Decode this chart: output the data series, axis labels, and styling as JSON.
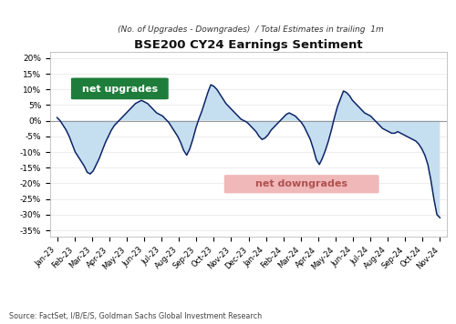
{
  "title": "BSE200 CY24 Earnings Sentiment",
  "subtitle": "(No. of Upgrades - Downgrades)  / Total Estimates in trailing  1m",
  "source": "Source: FactSet, I/B/E/S, Goldman Sachs Global Investment Research",
  "x_labels": [
    "Jan-23",
    "Feb-23",
    "Mar-23",
    "Apr-23",
    "May-23",
    "Jun-23",
    "Jul-23",
    "Aug-23",
    "Sep-23",
    "Oct-23",
    "Nov-23",
    "Dec-23",
    "Jan-24",
    "Feb-24",
    "Mar-24",
    "Apr-24",
    "May-24",
    "Jun-24",
    "Jul-24",
    "Aug-24",
    "Sep-24",
    "Oct-24",
    "Nov-24"
  ],
  "line_color": "#0d2468",
  "fill_color": "#c5dff0",
  "zero_line_color": "#999999",
  "ylim": [
    -37,
    22
  ],
  "yticks": [
    -35,
    -30,
    -25,
    -20,
    -15,
    -10,
    -5,
    0,
    5,
    10,
    15,
    20
  ],
  "ytick_labels": [
    "-35%",
    "-30%",
    "-25%",
    "-20%",
    "-15%",
    "-10%",
    "-5%",
    "0%",
    "5%",
    "10%",
    "15%",
    "20%"
  ],
  "net_upgrades_label": "net upgrades",
  "net_downgrades_label": "net downgrades",
  "net_upgrades_color": "#1e7d3a",
  "net_downgrades_color": "#f0b8b8",
  "net_upgrades_text_color": "#ffffff",
  "net_downgrades_text_color": "#b05050",
  "bg_color": "#ffffff",
  "border_color": "#bbbbbb",
  "raw_y": [
    1.0,
    0.0,
    -1.5,
    -3.0,
    -5.0,
    -7.5,
    -10.0,
    -11.5,
    -13.0,
    -14.5,
    -16.5,
    -17.0,
    -16.0,
    -14.0,
    -12.0,
    -9.5,
    -7.0,
    -5.0,
    -3.0,
    -1.5,
    -0.5,
    0.5,
    1.5,
    2.5,
    3.5,
    4.5,
    5.5,
    6.0,
    6.5,
    6.0,
    5.5,
    4.5,
    3.5,
    2.5,
    2.0,
    1.5,
    0.5,
    -0.5,
    -2.0,
    -3.5,
    -5.0,
    -7.0,
    -9.5,
    -11.0,
    -9.0,
    -6.0,
    -2.5,
    0.5,
    3.0,
    6.0,
    9.0,
    11.5,
    11.0,
    10.0,
    8.5,
    7.0,
    5.5,
    4.5,
    3.5,
    2.5,
    1.5,
    0.5,
    0.0,
    -0.5,
    -1.5,
    -2.5,
    -3.5,
    -5.0,
    -6.0,
    -5.5,
    -4.5,
    -3.0,
    -2.0,
    -1.0,
    0.0,
    1.0,
    2.0,
    2.5,
    2.0,
    1.5,
    0.5,
    -0.5,
    -2.0,
    -4.0,
    -6.0,
    -9.0,
    -12.5,
    -14.0,
    -12.0,
    -9.5,
    -6.5,
    -3.0,
    1.0,
    4.5,
    7.0,
    9.5,
    9.0,
    8.0,
    6.5,
    5.5,
    4.5,
    3.5,
    2.5,
    2.0,
    1.5,
    0.5,
    -0.5,
    -1.5,
    -2.5,
    -3.0,
    -3.5,
    -4.0,
    -4.0,
    -3.5,
    -4.0,
    -4.5,
    -5.0,
    -5.5,
    -6.0,
    -6.5,
    -7.5,
    -9.0,
    -11.0,
    -14.0,
    -19.0,
    -25.0,
    -30.0,
    -31.0
  ]
}
